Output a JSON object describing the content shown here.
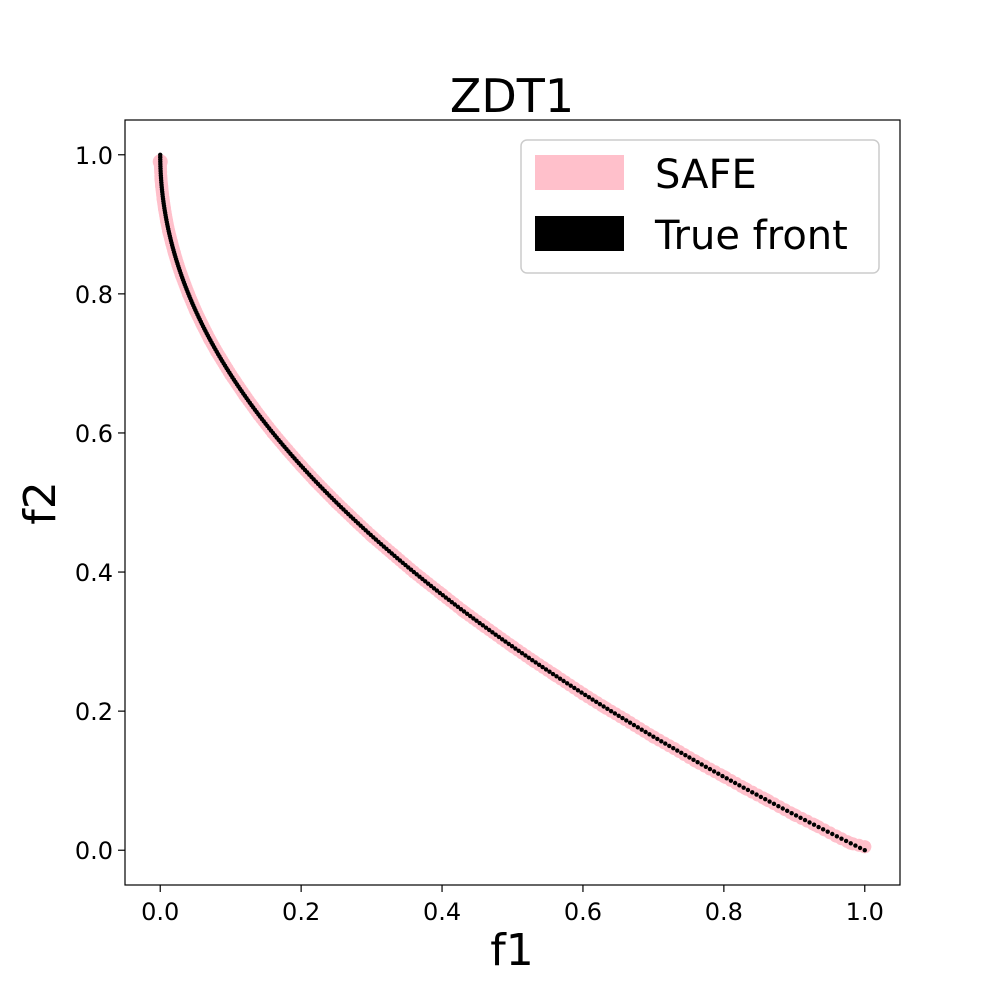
{
  "chart_data": {
    "type": "scatter",
    "title": "ZDT1",
    "xlabel": "f1",
    "ylabel": "f2",
    "xlim": [
      -0.05,
      1.05
    ],
    "ylim": [
      -0.05,
      1.05
    ],
    "xticks": [
      "0.0",
      "0.2",
      "0.4",
      "0.6",
      "0.8",
      "1.0"
    ],
    "yticks": [
      "0.0",
      "0.2",
      "0.4",
      "0.6",
      "0.8",
      "1.0"
    ],
    "grid": false,
    "legend_position": "top-right",
    "series": [
      {
        "name": "SAFE",
        "color": "#ffc0cb",
        "x": [
          0.0,
          0.001,
          0.002,
          0.004,
          0.006,
          0.009,
          0.012,
          0.016,
          0.02,
          0.025,
          0.03,
          0.04,
          0.05,
          0.06,
          0.07,
          0.08,
          0.1,
          0.12,
          0.14,
          0.16,
          0.18,
          0.2,
          0.22,
          0.25,
          0.28,
          0.3,
          0.33,
          0.36,
          0.4,
          0.43,
          0.46,
          0.5,
          0.53,
          0.56,
          0.6,
          0.63,
          0.66,
          0.7,
          0.73,
          0.76,
          0.8,
          0.83,
          0.86,
          0.9,
          0.93,
          0.96,
          0.98,
          1.0
        ],
        "y": [
          0.99,
          0.966,
          0.955,
          0.937,
          0.923,
          0.905,
          0.89,
          0.874,
          0.859,
          0.842,
          0.827,
          0.8,
          0.776,
          0.755,
          0.735,
          0.717,
          0.684,
          0.654,
          0.626,
          0.6,
          0.576,
          0.553,
          0.531,
          0.5,
          0.471,
          0.452,
          0.426,
          0.4,
          0.368,
          0.344,
          0.322,
          0.293,
          0.272,
          0.252,
          0.225,
          0.206,
          0.188,
          0.163,
          0.146,
          0.128,
          0.106,
          0.089,
          0.073,
          0.051,
          0.036,
          0.02,
          0.01,
          0.005
        ]
      },
      {
        "name": "True front",
        "color": "#000000",
        "function": "1 - sqrt(f1)",
        "x_range": [
          0.0,
          1.0
        ]
      }
    ]
  }
}
